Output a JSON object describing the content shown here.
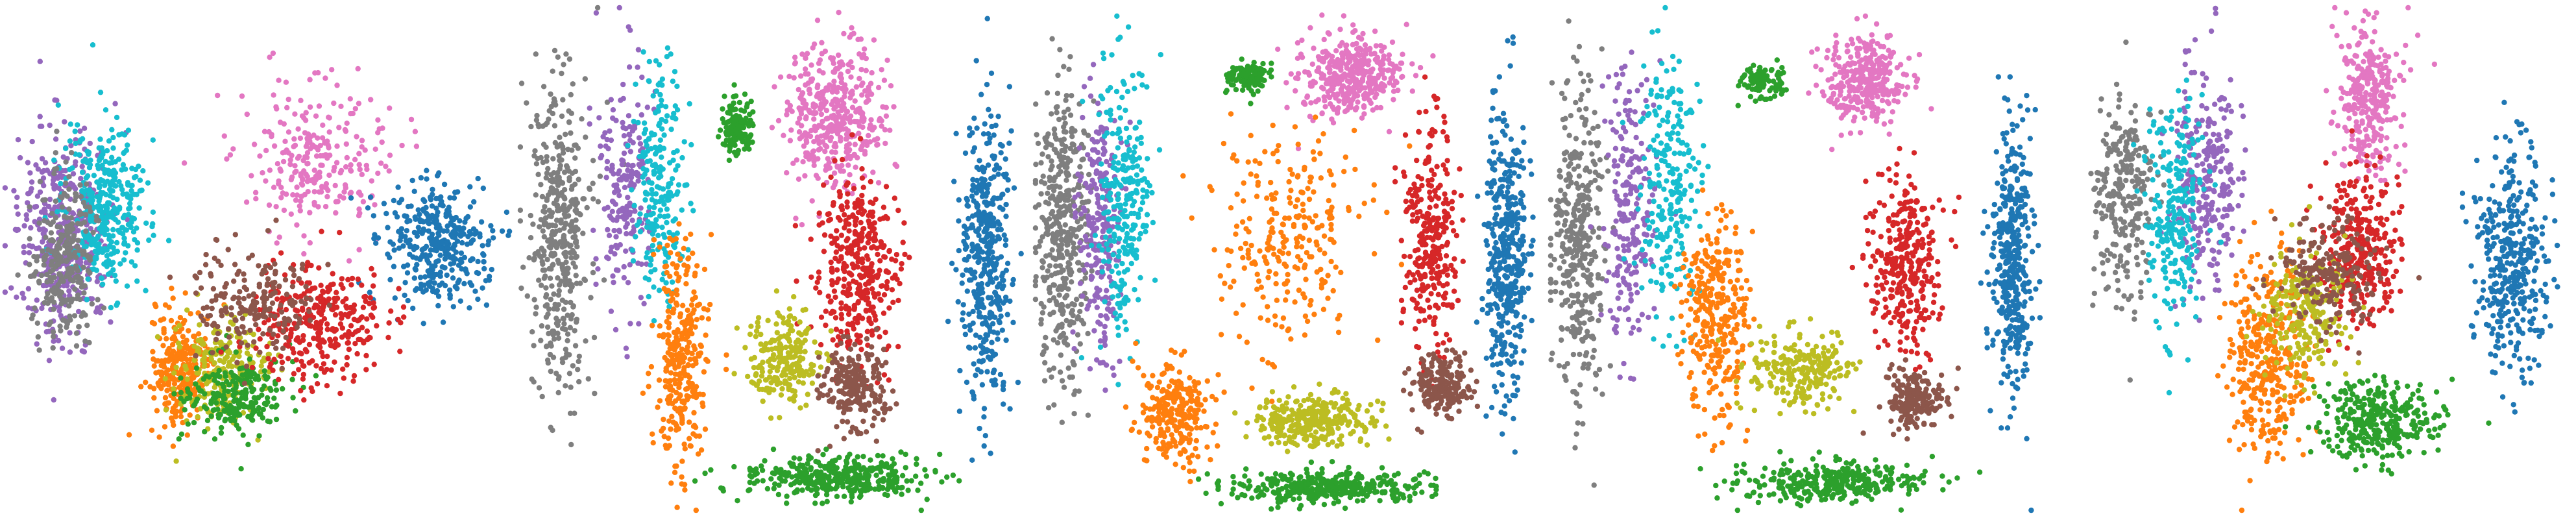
{
  "figure": {
    "background": "#ffffff"
  },
  "palette": {
    "blue": "#1f77b4",
    "orange": "#ff7f0e",
    "green": "#2ca02c",
    "red": "#d62728",
    "purple": "#9467bd",
    "brown": "#8c564b",
    "pink": "#e377c2",
    "gray": "#7f7f7f",
    "olive": "#bcbd22",
    "cyan": "#17becf"
  },
  "chart_data": [
    {
      "type": "scatter",
      "panel": 1,
      "axes_visible": false,
      "grid": false,
      "legend": "none",
      "clusters": [
        {
          "color": "purple",
          "count": 420,
          "center": [
            0.12,
            0.45
          ],
          "spread": [
            0.09,
            0.2
          ]
        },
        {
          "color": "cyan",
          "count": 360,
          "center": [
            0.2,
            0.4
          ],
          "spread": [
            0.08,
            0.16
          ]
        },
        {
          "color": "gray",
          "count": 260,
          "center": [
            0.12,
            0.5
          ],
          "spread": [
            0.06,
            0.16
          ]
        },
        {
          "color": "pink",
          "count": 260,
          "center": [
            0.62,
            0.3
          ],
          "spread": [
            0.14,
            0.14
          ]
        },
        {
          "color": "blue",
          "count": 360,
          "center": [
            0.85,
            0.47
          ],
          "spread": [
            0.1,
            0.12
          ]
        },
        {
          "color": "orange",
          "count": 260,
          "center": [
            0.35,
            0.72
          ],
          "spread": [
            0.06,
            0.12
          ]
        },
        {
          "color": "olive",
          "count": 220,
          "center": [
            0.43,
            0.72
          ],
          "spread": [
            0.09,
            0.1
          ]
        },
        {
          "color": "green",
          "count": 220,
          "center": [
            0.45,
            0.77
          ],
          "spread": [
            0.1,
            0.08
          ]
        },
        {
          "color": "red",
          "count": 320,
          "center": [
            0.62,
            0.63
          ],
          "spread": [
            0.13,
            0.12
          ]
        },
        {
          "color": "brown",
          "count": 200,
          "center": [
            0.5,
            0.58
          ],
          "spread": [
            0.12,
            0.1
          ]
        }
      ]
    },
    {
      "type": "scatter",
      "panel": 2,
      "axes_visible": false,
      "grid": false,
      "legend": "none",
      "clusters": [
        {
          "color": "gray",
          "count": 420,
          "center": [
            0.08,
            0.45
          ],
          "spread": [
            0.06,
            0.3
          ]
        },
        {
          "color": "purple",
          "count": 200,
          "center": [
            0.21,
            0.35
          ],
          "spread": [
            0.05,
            0.25
          ]
        },
        {
          "color": "cyan",
          "count": 220,
          "center": [
            0.28,
            0.35
          ],
          "spread": [
            0.05,
            0.22
          ]
        },
        {
          "color": "pink",
          "count": 420,
          "center": [
            0.62,
            0.22
          ],
          "spread": [
            0.1,
            0.14
          ]
        },
        {
          "color": "green",
          "count": 140,
          "center": [
            0.43,
            0.24
          ],
          "spread": [
            0.03,
            0.05
          ]
        },
        {
          "color": "blue",
          "count": 420,
          "center": [
            0.92,
            0.5
          ],
          "spread": [
            0.05,
            0.28
          ]
        },
        {
          "color": "orange",
          "count": 320,
          "center": [
            0.32,
            0.68
          ],
          "spread": [
            0.05,
            0.22
          ]
        },
        {
          "color": "red",
          "count": 380,
          "center": [
            0.67,
            0.52
          ],
          "spread": [
            0.08,
            0.18
          ]
        },
        {
          "color": "olive",
          "count": 220,
          "center": [
            0.52,
            0.7
          ],
          "spread": [
            0.07,
            0.1
          ]
        },
        {
          "color": "brown",
          "count": 220,
          "center": [
            0.66,
            0.75
          ],
          "spread": [
            0.06,
            0.08
          ]
        },
        {
          "color": "green",
          "count": 360,
          "center": [
            0.62,
            0.93
          ],
          "spread": [
            0.18,
            0.04
          ]
        }
      ]
    },
    {
      "type": "scatter",
      "panel": 3,
      "axes_visible": false,
      "grid": false,
      "legend": "none",
      "clusters": [
        {
          "color": "gray",
          "count": 420,
          "center": [
            0.06,
            0.45
          ],
          "spread": [
            0.05,
            0.3
          ]
        },
        {
          "color": "purple",
          "count": 240,
          "center": [
            0.13,
            0.42
          ],
          "spread": [
            0.04,
            0.28
          ]
        },
        {
          "color": "cyan",
          "count": 260,
          "center": [
            0.18,
            0.4
          ],
          "spread": [
            0.05,
            0.28
          ]
        },
        {
          "color": "pink",
          "count": 380,
          "center": [
            0.62,
            0.14
          ],
          "spread": [
            0.1,
            0.08
          ]
        },
        {
          "color": "green",
          "count": 120,
          "center": [
            0.42,
            0.14
          ],
          "spread": [
            0.04,
            0.03
          ]
        },
        {
          "color": "blue",
          "count": 420,
          "center": [
            0.93,
            0.5
          ],
          "spread": [
            0.04,
            0.28
          ]
        },
        {
          "color": "orange",
          "count": 260,
          "center": [
            0.5,
            0.45
          ],
          "spread": [
            0.15,
            0.2
          ]
        },
        {
          "color": "orange",
          "count": 260,
          "center": [
            0.28,
            0.8
          ],
          "spread": [
            0.07,
            0.1
          ]
        },
        {
          "color": "red",
          "count": 300,
          "center": [
            0.78,
            0.45
          ],
          "spread": [
            0.05,
            0.22
          ]
        },
        {
          "color": "olive",
          "count": 300,
          "center": [
            0.55,
            0.82
          ],
          "spread": [
            0.12,
            0.05
          ]
        },
        {
          "color": "brown",
          "count": 200,
          "center": [
            0.8,
            0.75
          ],
          "spread": [
            0.06,
            0.06
          ]
        },
        {
          "color": "green",
          "count": 360,
          "center": [
            0.58,
            0.95
          ],
          "spread": [
            0.2,
            0.03
          ]
        }
      ]
    },
    {
      "type": "scatter",
      "panel": 4,
      "axes_visible": false,
      "grid": false,
      "legend": "none",
      "clusters": [
        {
          "color": "gray",
          "count": 380,
          "center": [
            0.06,
            0.45
          ],
          "spread": [
            0.05,
            0.3
          ]
        },
        {
          "color": "purple",
          "count": 220,
          "center": [
            0.16,
            0.4
          ],
          "spread": [
            0.05,
            0.28
          ]
        },
        {
          "color": "cyan",
          "count": 240,
          "center": [
            0.24,
            0.35
          ],
          "spread": [
            0.06,
            0.25
          ]
        },
        {
          "color": "pink",
          "count": 320,
          "center": [
            0.62,
            0.15
          ],
          "spread": [
            0.08,
            0.09
          ]
        },
        {
          "color": "green",
          "count": 100,
          "center": [
            0.42,
            0.15
          ],
          "spread": [
            0.04,
            0.03
          ]
        },
        {
          "color": "blue",
          "count": 400,
          "center": [
            0.91,
            0.5
          ],
          "spread": [
            0.04,
            0.26
          ]
        },
        {
          "color": "orange",
          "count": 320,
          "center": [
            0.33,
            0.62
          ],
          "spread": [
            0.06,
            0.2
          ]
        },
        {
          "color": "red",
          "count": 320,
          "center": [
            0.7,
            0.5
          ],
          "spread": [
            0.07,
            0.18
          ]
        },
        {
          "color": "olive",
          "count": 220,
          "center": [
            0.5,
            0.72
          ],
          "spread": [
            0.1,
            0.08
          ]
        },
        {
          "color": "brown",
          "count": 180,
          "center": [
            0.72,
            0.78
          ],
          "spread": [
            0.06,
            0.06
          ]
        },
        {
          "color": "green",
          "count": 320,
          "center": [
            0.55,
            0.94
          ],
          "spread": [
            0.18,
            0.04
          ]
        }
      ]
    },
    {
      "type": "scatter",
      "panel": 5,
      "axes_visible": false,
      "grid": false,
      "legend": "none",
      "clusters": [
        {
          "color": "gray",
          "count": 260,
          "center": [
            0.12,
            0.38
          ],
          "spread": [
            0.06,
            0.2
          ]
        },
        {
          "color": "purple",
          "count": 260,
          "center": [
            0.28,
            0.35
          ],
          "spread": [
            0.06,
            0.22
          ]
        },
        {
          "color": "cyan",
          "count": 240,
          "center": [
            0.22,
            0.4
          ],
          "spread": [
            0.06,
            0.22
          ]
        },
        {
          "color": "pink",
          "count": 300,
          "center": [
            0.6,
            0.18
          ],
          "spread": [
            0.06,
            0.14
          ]
        },
        {
          "color": "blue",
          "count": 380,
          "center": [
            0.88,
            0.5
          ],
          "spread": [
            0.07,
            0.22
          ]
        },
        {
          "color": "orange",
          "count": 360,
          "center": [
            0.4,
            0.7
          ],
          "spread": [
            0.08,
            0.2
          ]
        },
        {
          "color": "red",
          "count": 320,
          "center": [
            0.58,
            0.48
          ],
          "spread": [
            0.08,
            0.14
          ]
        },
        {
          "color": "olive",
          "count": 240,
          "center": [
            0.48,
            0.6
          ],
          "spread": [
            0.08,
            0.12
          ]
        },
        {
          "color": "brown",
          "count": 200,
          "center": [
            0.52,
            0.52
          ],
          "spread": [
            0.1,
            0.1
          ]
        },
        {
          "color": "green",
          "count": 320,
          "center": [
            0.62,
            0.82
          ],
          "spread": [
            0.12,
            0.08
          ]
        }
      ]
    }
  ]
}
